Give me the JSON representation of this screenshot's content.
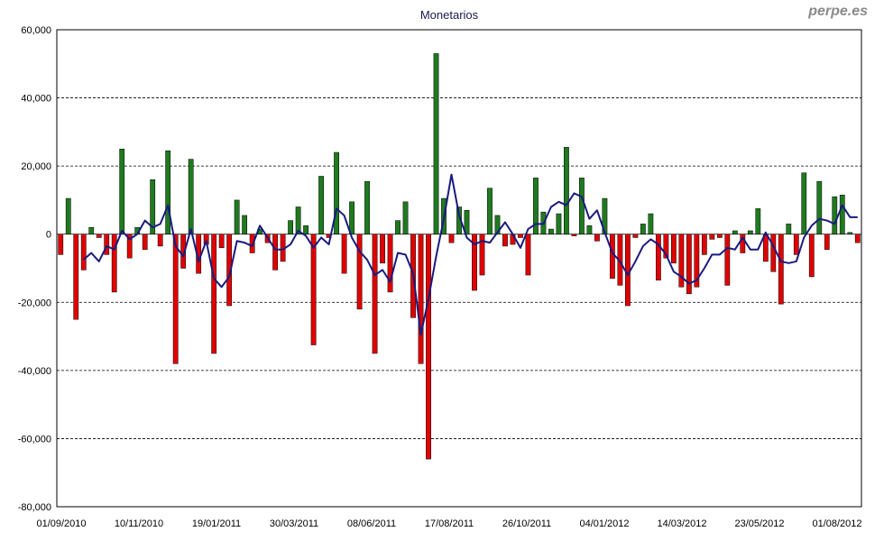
{
  "watermark": "perpe.es",
  "chart_data": {
    "type": "bar",
    "title": "Monetarios",
    "xlabel": "",
    "ylabel": "",
    "ylim": [
      -80000,
      60000
    ],
    "yticks": [
      -80000,
      -60000,
      -40000,
      -20000,
      0,
      20000,
      40000,
      60000
    ],
    "ytick_labels": [
      "-80,000",
      "-60,000",
      "-40,000",
      "-20,000",
      "0",
      "20,000",
      "40,000",
      "60,000"
    ],
    "xtick_labels": [
      "01/09/2010",
      "10/11/2010",
      "19/01/2011",
      "30/03/2011",
      "08/06/2011",
      "17/08/2011",
      "26/10/2011",
      "04/01/2012",
      "14/03/2012",
      "23/05/2012",
      "01/08/2012"
    ],
    "grid": true,
    "legend": "none",
    "colors": {
      "positive": "#1f7a1f",
      "negative": "#e00000",
      "line": "#1a1a80"
    },
    "series": [
      {
        "type": "bar",
        "values": [
          -6000,
          10500,
          -25000,
          -10500,
          2000,
          -1000,
          -6000,
          -17000,
          25000,
          -7000,
          2000,
          -4500,
          16000,
          -3500,
          24500,
          -38000,
          -10000,
          22000,
          -11500,
          -3000,
          -35000,
          -4000,
          -21000,
          10000,
          5500,
          -5500,
          1500,
          -2500,
          -10500,
          -8000,
          4000,
          8000,
          2500,
          -32500,
          17000,
          -1000,
          24000,
          -11500,
          9500,
          -22000,
          15500,
          -35000,
          -8500,
          -17000,
          4000,
          9500,
          -24500,
          -38000,
          -66000,
          53000,
          10500,
          -2500,
          8000,
          7000,
          -16500,
          -12000,
          13500,
          5500,
          -3500,
          -3000,
          -1000,
          -12000,
          16500,
          6500,
          1500,
          6000,
          25500,
          -500,
          16500,
          2500,
          -2000,
          10500,
          -13000,
          -15000,
          -21000,
          -1000,
          3000,
          6000,
          -13500,
          -7000,
          -8500,
          -15500,
          -17500,
          -15500,
          -6000,
          -1500,
          -1000,
          -15000,
          1000,
          -5500,
          1000,
          7500,
          -8000,
          -11000,
          -20500,
          3000,
          -6000,
          18000,
          -12500,
          15500,
          -4500,
          11000,
          11500,
          500,
          -2500
        ]
      },
      {
        "type": "line",
        "values": [
          null,
          null,
          null,
          -7500,
          -5500,
          -8000,
          -3500,
          -4500,
          1000,
          -1500,
          0,
          4000,
          2000,
          3000,
          8500,
          -3500,
          -6500,
          1500,
          -8000,
          -2000,
          -13000,
          -15500,
          -12500,
          -2000,
          -2500,
          -3500,
          2500,
          -1000,
          -4500,
          -4500,
          -3000,
          1000,
          -500,
          -4000,
          -1000,
          -3000,
          7500,
          5500,
          -1000,
          -5000,
          -7500,
          -12000,
          -10500,
          -14000,
          -5500,
          -6000,
          -11500,
          -29500,
          -19000,
          -6500,
          4500,
          17500,
          5500,
          -1000,
          -3000,
          -2000,
          -2500,
          500,
          3500,
          0,
          -4000,
          1500,
          3000,
          3000,
          8000,
          9500,
          8500,
          12000,
          11000,
          4500,
          7000,
          500,
          -5500,
          -8000,
          -12000,
          -8000,
          -3500,
          -1500,
          -3000,
          -6000,
          -11000,
          -12500,
          -14500,
          -13500,
          -10000,
          -6000,
          -6000,
          -4000,
          -4500,
          -1000,
          -4500,
          -4500,
          500,
          -3500,
          -8000,
          -8500,
          -8000,
          -1000,
          2500,
          4500,
          4000,
          3000,
          8500,
          5000,
          5000
        ]
      }
    ]
  }
}
